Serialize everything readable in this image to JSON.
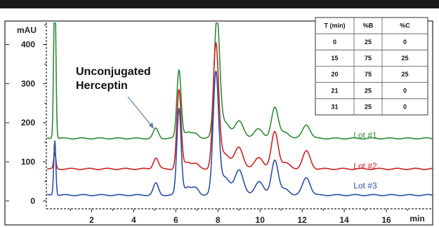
{
  "chart_data": {
    "type": "line",
    "xlabel": "min",
    "ylabel": "mAU",
    "xlim": [
      -0.15,
      18.2
    ],
    "ylim": [
      -20,
      460
    ],
    "x_ticks": [
      2,
      4,
      6,
      8,
      10,
      12,
      14,
      16
    ],
    "x_tick_labels": [
      "2",
      "4",
      "6",
      "8",
      "10",
      "12",
      "14",
      "16"
    ],
    "y_ticks": [
      0,
      100,
      200,
      300,
      400
    ],
    "y_tick_labels": [
      "0",
      "100",
      "200",
      "300",
      "400"
    ],
    "grid": false,
    "series": [
      {
        "name": "Lot #1",
        "color": "#2e8b3a",
        "offset": 160,
        "peaks": [
          [
            0.25,
            420,
            0.05
          ],
          [
            5.05,
            25,
            0.12
          ],
          [
            6.15,
            175,
            0.1
          ],
          [
            6.55,
            15,
            0.18
          ],
          [
            6.95,
            12,
            0.15
          ],
          [
            7.95,
            300,
            0.13
          ],
          [
            8.3,
            40,
            0.25
          ],
          [
            9.0,
            45,
            0.2
          ],
          [
            9.9,
            25,
            0.2
          ],
          [
            10.7,
            80,
            0.16
          ],
          [
            11.2,
            15,
            0.2
          ],
          [
            12.2,
            35,
            0.18
          ]
        ]
      },
      {
        "name": "Lot #2",
        "color": "#cc2222",
        "offset": 82,
        "peaks": [
          [
            0.25,
            40,
            0.05
          ],
          [
            5.05,
            28,
            0.12
          ],
          [
            6.15,
            200,
            0.1
          ],
          [
            6.55,
            18,
            0.18
          ],
          [
            6.95,
            12,
            0.15
          ],
          [
            7.9,
            310,
            0.13
          ],
          [
            8.3,
            40,
            0.25
          ],
          [
            9.0,
            55,
            0.2
          ],
          [
            9.95,
            30,
            0.2
          ],
          [
            10.7,
            95,
            0.16
          ],
          [
            11.2,
            15,
            0.2
          ],
          [
            12.2,
            45,
            0.18
          ]
        ]
      },
      {
        "name": "Lot #3",
        "color": "#2b4fa8",
        "offset": 15,
        "peaks": [
          [
            0.25,
            140,
            0.05
          ],
          [
            5.05,
            30,
            0.12
          ],
          [
            6.15,
            220,
            0.1
          ],
          [
            6.55,
            20,
            0.18
          ],
          [
            6.95,
            18,
            0.15
          ],
          [
            7.9,
            305,
            0.13
          ],
          [
            8.3,
            45,
            0.25
          ],
          [
            9.0,
            65,
            0.2
          ],
          [
            9.95,
            35,
            0.2
          ],
          [
            10.7,
            90,
            0.16
          ],
          [
            11.2,
            15,
            0.2
          ],
          [
            12.2,
            45,
            0.18
          ]
        ]
      }
    ],
    "annotation": {
      "text": "Unconjugated Herceptin",
      "line1": "Unconjugated",
      "line2": "Herceptin",
      "arrow_to": [
        4.95,
        185
      ]
    },
    "gradient_table": {
      "headers": [
        "T (min)",
        "%B",
        "%C"
      ],
      "rows": [
        [
          "0",
          "25",
          "0"
        ],
        [
          "15",
          "75",
          "25"
        ],
        [
          "20",
          "75",
          "25"
        ],
        [
          "21",
          "25",
          "0"
        ],
        [
          "31",
          "25",
          "0"
        ]
      ]
    }
  }
}
